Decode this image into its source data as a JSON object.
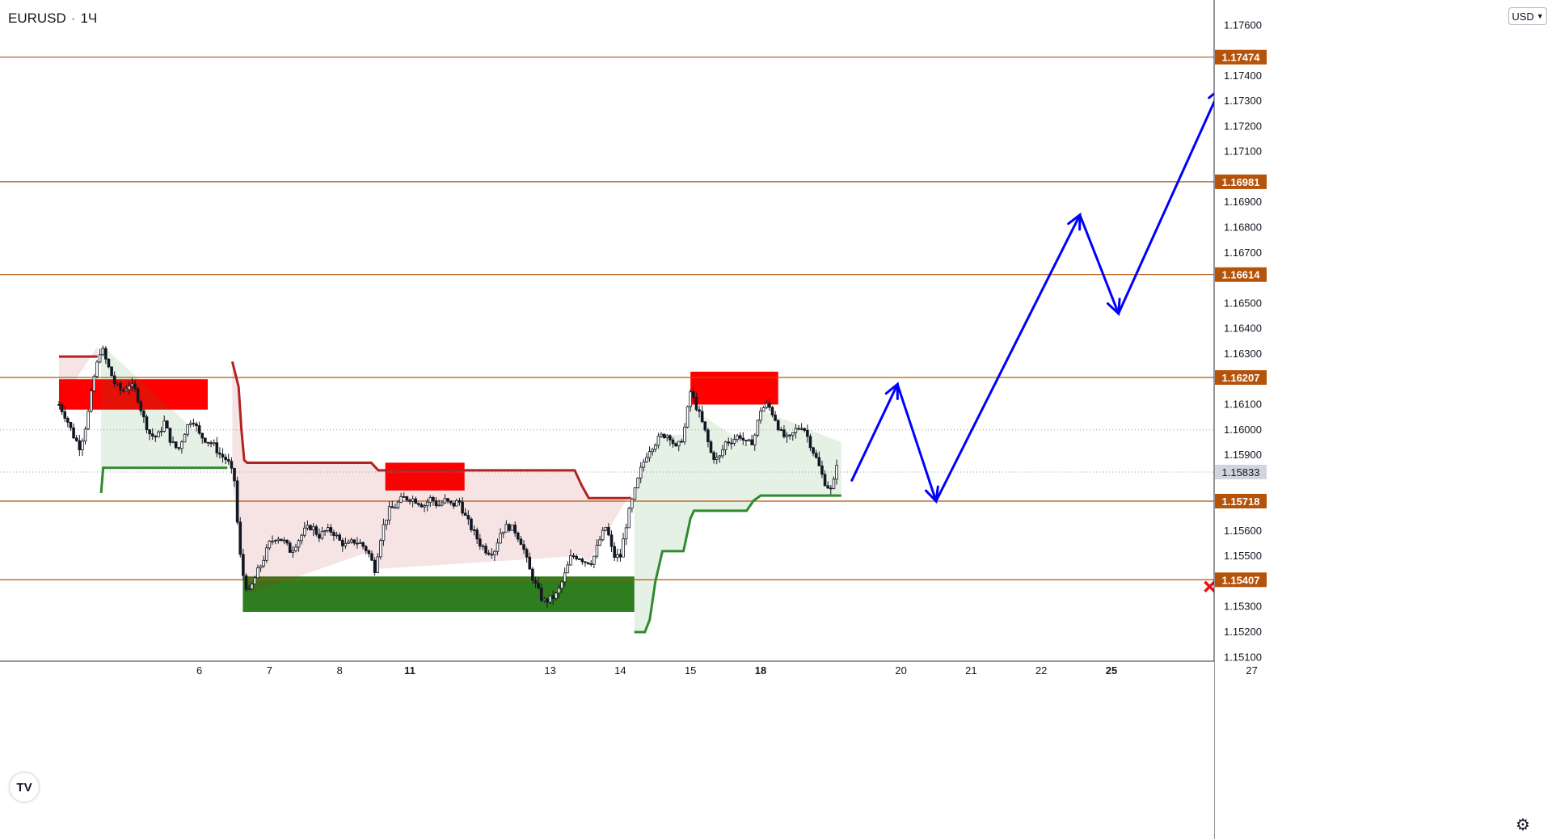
{
  "header": {
    "symbol": "EURUSD",
    "interval": "1Ч",
    "dot": "·"
  },
  "currency_button": {
    "label": "USD"
  },
  "icons": {
    "logo": "tradingview-logo-icon",
    "settings": "gear-icon"
  },
  "colors": {
    "level_line": "#b45309",
    "badge_bg": "#b45309",
    "supply_zone": "#ff0000",
    "demand_zone": "#2e7d1f",
    "projection": "#0000ff",
    "bullish_trail": "#2e8b2e",
    "bearish_trail": "#b22222",
    "target_callout_border": "#000000",
    "entry_callout": "#22cc22",
    "stop_callout": "#ee1111"
  },
  "chart_data": {
    "type": "candlestick",
    "symbol": "EURUSD",
    "timeframe": "1H",
    "ylim": [
      1.15085,
      1.177
    ],
    "y_ticks": [
      "1.15100",
      "1.15200",
      "1.15300",
      "1.15500",
      "1.15600",
      "1.15900",
      "1.16000",
      "1.16100",
      "1.16300",
      "1.16400",
      "1.16500",
      "1.16700",
      "1.16800",
      "1.16900",
      "1.17100",
      "1.17200",
      "1.17300",
      "1.17400",
      "1.17600"
    ],
    "current_price": "1.15833",
    "x_labels": [
      {
        "label": "6",
        "session": 2
      },
      {
        "label": "7",
        "session": 3
      },
      {
        "label": "8",
        "session": 4
      },
      {
        "label": "11",
        "session": 5,
        "bold": true
      },
      {
        "label": "13",
        "session": 7
      },
      {
        "label": "14",
        "session": 8
      },
      {
        "label": "15",
        "session": 9
      },
      {
        "label": "18",
        "session": 10,
        "bold": true
      },
      {
        "label": "20",
        "session": 12
      },
      {
        "label": "21",
        "session": 13
      },
      {
        "label": "22",
        "session": 14
      },
      {
        "label": "25",
        "session": 15,
        "bold": true
      },
      {
        "label": "27",
        "session": 17
      }
    ],
    "levels": [
      {
        "value": 1.17474,
        "label": "1.17474"
      },
      {
        "value": 1.16981,
        "label": "1.16981"
      },
      {
        "value": 1.16614,
        "label": "1.16614"
      },
      {
        "value": 1.16207,
        "label": "1.16207"
      },
      {
        "value": 1.15718,
        "label": "1.15718"
      },
      {
        "value": 1.15407,
        "label": "1.15407"
      }
    ],
    "callouts": [
      {
        "label": "1.17474",
        "value": 1.17474,
        "kind": "target",
        "session": 16.6
      },
      {
        "label": "1.16981",
        "value": 1.16981,
        "kind": "target",
        "session": 16.6
      },
      {
        "label": "1.15718",
        "value": 1.15718,
        "kind": "entry",
        "session": 16.6
      },
      {
        "label": "1.15407",
        "value": 1.15407,
        "kind": "stop",
        "session": 16.6
      }
    ],
    "stop_marker": {
      "value": 1.1538,
      "session": 16.4
    },
    "zones": [
      {
        "kind": "supply",
        "from": 0.0,
        "to": 2.12,
        "low": 1.1608,
        "high": 1.162
      },
      {
        "kind": "supply",
        "from": 4.65,
        "to": 5.78,
        "low": 1.1576,
        "high": 1.1587
      },
      {
        "kind": "supply",
        "from": 9.0,
        "to": 10.25,
        "low": 1.161,
        "high": 1.1623
      },
      {
        "kind": "demand",
        "from": 2.62,
        "to": 8.2,
        "low": 1.1528,
        "high": 1.1542
      }
    ],
    "trail_bear": [
      [
        0.0,
        1.1629
      ],
      [
        0.55,
        1.1629
      ],
      [
        2.47,
        1.1627
      ],
      [
        2.56,
        1.1617
      ],
      [
        2.6,
        1.16
      ],
      [
        2.64,
        1.1588
      ],
      [
        2.68,
        1.1587
      ],
      [
        4.45,
        1.1587
      ],
      [
        4.55,
        1.1584
      ],
      [
        7.35,
        1.1584
      ],
      [
        7.45,
        1.1578
      ],
      [
        7.55,
        1.1573
      ],
      [
        8.15,
        1.1573
      ]
    ],
    "trail_bull": [
      [
        0.6,
        1.1575
      ],
      [
        0.63,
        1.1585
      ],
      [
        2.4,
        1.1585
      ],
      [
        8.2,
        1.152
      ],
      [
        8.35,
        1.152
      ],
      [
        8.42,
        1.1525
      ],
      [
        8.5,
        1.154
      ],
      [
        8.6,
        1.1552
      ],
      [
        8.9,
        1.1552
      ],
      [
        9.0,
        1.1565
      ],
      [
        9.05,
        1.1568
      ],
      [
        9.8,
        1.1568
      ],
      [
        9.9,
        1.1572
      ],
      [
        10.0,
        1.1574
      ],
      [
        11.15,
        1.1574
      ]
    ],
    "projection": [
      [
        11.3,
        1.158
      ],
      [
        11.95,
        1.1618
      ],
      [
        12.5,
        1.15718
      ],
      [
        14.55,
        1.1685
      ],
      [
        15.1,
        1.1646
      ],
      [
        16.55,
        1.1735
      ]
    ],
    "candle_anchors": [
      [
        0.0,
        1.161
      ],
      [
        0.1,
        1.1605
      ],
      [
        0.2,
        1.1598
      ],
      [
        0.3,
        1.1593
      ],
      [
        0.4,
        1.1604
      ],
      [
        0.5,
        1.1621
      ],
      [
        0.6,
        1.1633
      ],
      [
        0.7,
        1.1625
      ],
      [
        0.8,
        1.1618
      ],
      [
        0.9,
        1.1615
      ],
      [
        1.0,
        1.1618
      ],
      [
        1.1,
        1.1615
      ],
      [
        1.2,
        1.1605
      ],
      [
        1.3,
        1.1598
      ],
      [
        1.4,
        1.1597
      ],
      [
        1.5,
        1.1603
      ],
      [
        1.6,
        1.1595
      ],
      [
        1.7,
        1.1592
      ],
      [
        1.8,
        1.16
      ],
      [
        1.9,
        1.1605
      ],
      [
        2.0,
        1.1598
      ],
      [
        2.1,
        1.1596
      ],
      [
        2.2,
        1.1594
      ],
      [
        2.3,
        1.159
      ],
      [
        2.4,
        1.1588
      ],
      [
        2.5,
        1.158
      ],
      [
        2.55,
        1.156
      ],
      [
        2.6,
        1.1545
      ],
      [
        2.7,
        1.1535
      ],
      [
        2.8,
        1.1542
      ],
      [
        2.9,
        1.1548
      ],
      [
        3.0,
        1.1555
      ],
      [
        3.1,
        1.1558
      ],
      [
        3.2,
        1.1556
      ],
      [
        3.3,
        1.1552
      ],
      [
        3.4,
        1.1556
      ],
      [
        3.5,
        1.156
      ],
      [
        3.6,
        1.1562
      ],
      [
        3.7,
        1.1558
      ],
      [
        3.8,
        1.156
      ],
      [
        3.9,
        1.156
      ],
      [
        4.0,
        1.1556
      ],
      [
        4.1,
        1.1554
      ],
      [
        4.2,
        1.1556
      ],
      [
        4.3,
        1.1555
      ],
      [
        4.4,
        1.1552
      ],
      [
        4.5,
        1.1545
      ],
      [
        4.6,
        1.156
      ],
      [
        4.7,
        1.1568
      ],
      [
        4.8,
        1.157
      ],
      [
        4.9,
        1.1573
      ],
      [
        5.0,
        1.1573
      ],
      [
        5.1,
        1.1572
      ],
      [
        5.2,
        1.157
      ],
      [
        5.3,
        1.1573
      ],
      [
        5.4,
        1.157
      ],
      [
        5.5,
        1.1572
      ],
      [
        5.6,
        1.157
      ],
      [
        5.7,
        1.1572
      ],
      [
        5.8,
        1.1565
      ],
      [
        5.9,
        1.156
      ],
      [
        6.0,
        1.1555
      ],
      [
        6.1,
        1.1552
      ],
      [
        6.2,
        1.1552
      ],
      [
        6.3,
        1.156
      ],
      [
        6.4,
        1.1562
      ],
      [
        6.5,
        1.156
      ],
      [
        6.6,
        1.1555
      ],
      [
        6.7,
        1.1545
      ],
      [
        6.8,
        1.1538
      ],
      [
        6.9,
        1.1532
      ],
      [
        7.0,
        1.1533
      ],
      [
        7.1,
        1.1535
      ],
      [
        7.2,
        1.1542
      ],
      [
        7.3,
        1.155
      ],
      [
        7.4,
        1.155
      ],
      [
        7.5,
        1.1548
      ],
      [
        7.6,
        1.1548
      ],
      [
        7.7,
        1.1556
      ],
      [
        7.8,
        1.1562
      ],
      [
        7.9,
        1.155
      ],
      [
        8.0,
        1.155
      ],
      [
        8.1,
        1.1565
      ],
      [
        8.2,
        1.1575
      ],
      [
        8.3,
        1.1585
      ],
      [
        8.4,
        1.1592
      ],
      [
        8.5,
        1.1595
      ],
      [
        8.6,
        1.1598
      ],
      [
        8.7,
        1.1598
      ],
      [
        8.8,
        1.1592
      ],
      [
        8.9,
        1.1598
      ],
      [
        9.0,
        1.1615
      ],
      [
        9.1,
        1.1608
      ],
      [
        9.2,
        1.16
      ],
      [
        9.3,
        1.159
      ],
      [
        9.4,
        1.1588
      ],
      [
        9.5,
        1.1595
      ],
      [
        9.6,
        1.1596
      ],
      [
        9.7,
        1.1598
      ],
      [
        9.8,
        1.1594
      ],
      [
        9.9,
        1.1596
      ],
      [
        10.0,
        1.1608
      ],
      [
        10.1,
        1.161
      ],
      [
        10.2,
        1.1605
      ],
      [
        10.3,
        1.1598
      ],
      [
        10.4,
        1.1596
      ],
      [
        10.5,
        1.16
      ],
      [
        10.6,
        1.1602
      ],
      [
        10.7,
        1.1595
      ],
      [
        10.8,
        1.1588
      ],
      [
        10.9,
        1.158
      ],
      [
        11.0,
        1.1576
      ],
      [
        11.05,
        1.158
      ],
      [
        11.12,
        1.1595
      ]
    ]
  }
}
